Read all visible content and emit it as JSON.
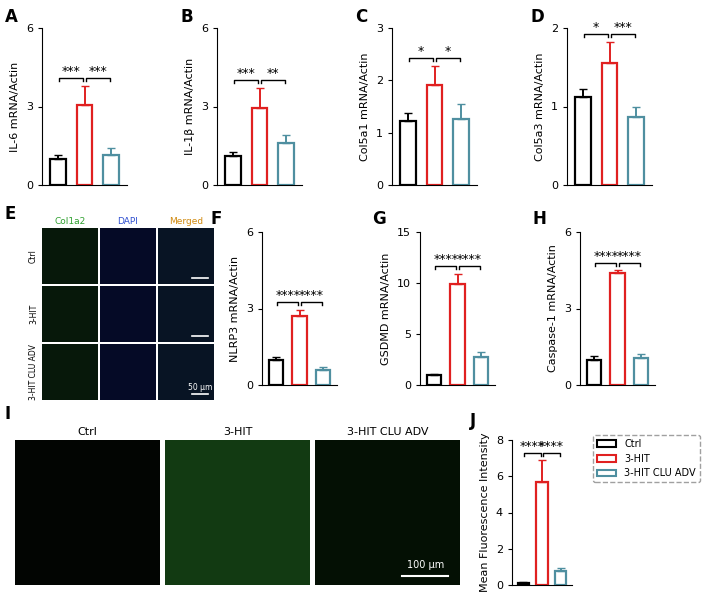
{
  "chart_data": [
    {
      "type": "bar",
      "title": "A",
      "y_label": "IL-6 mRNA/Actin",
      "categories": [
        null,
        null,
        null
      ],
      "values": [
        1.0,
        3.05,
        1.15
      ],
      "errors": [
        0.15,
        0.75,
        0.25
      ],
      "colors": [
        "#000000",
        "#e02020",
        "#4f8fa0"
      ],
      "ylim": [
        0,
        6
      ],
      "yticks": [
        0,
        3,
        6
      ],
      "annotations": [
        {
          "from": 0,
          "to": 1,
          "text": "***"
        },
        {
          "from": 1,
          "to": 2,
          "text": "***"
        }
      ]
    },
    {
      "type": "bar",
      "title": "B",
      "y_label": "IL-1β mRNA/Actin",
      "categories": [
        null,
        null,
        null
      ],
      "values": [
        1.1,
        2.95,
        1.6
      ],
      "errors": [
        0.15,
        0.75,
        0.3
      ],
      "colors": [
        "#000000",
        "#e02020",
        "#4f8fa0"
      ],
      "ylim": [
        0,
        6
      ],
      "yticks": [
        0,
        3,
        6
      ],
      "annotations": [
        {
          "from": 0,
          "to": 1,
          "text": "***"
        },
        {
          "from": 1,
          "to": 2,
          "text": "**"
        }
      ]
    },
    {
      "type": "bar",
      "title": "C",
      "y_label": "Col5a1 mRNA/Actin",
      "categories": [
        null,
        null,
        null
      ],
      "values": [
        1.22,
        1.92,
        1.27
      ],
      "errors": [
        0.15,
        0.35,
        0.28
      ],
      "colors": [
        "#000000",
        "#e02020",
        "#4f8fa0"
      ],
      "ylim": [
        0,
        3
      ],
      "yticks": [
        0,
        1,
        2,
        3
      ],
      "annotations": [
        {
          "from": 0,
          "to": 1,
          "text": "*"
        },
        {
          "from": 1,
          "to": 2,
          "text": "*"
        }
      ]
    },
    {
      "type": "bar",
      "title": "D",
      "y_label": "Col5a3 mRNA/Actin",
      "categories": [
        null,
        null,
        null
      ],
      "values": [
        1.12,
        1.55,
        0.87
      ],
      "errors": [
        0.1,
        0.27,
        0.12
      ],
      "colors": [
        "#000000",
        "#e02020",
        "#4f8fa0"
      ],
      "ylim": [
        0,
        2
      ],
      "yticks": [
        0,
        1,
        2
      ],
      "annotations": [
        {
          "from": 0,
          "to": 1,
          "text": "*"
        },
        {
          "from": 1,
          "to": 2,
          "text": "***"
        }
      ]
    },
    {
      "type": "bar",
      "title": "F",
      "y_label": "NLRP3 mRNA/Actin",
      "categories": [
        null,
        null,
        null
      ],
      "values": [
        1.0,
        2.7,
        0.6
      ],
      "errors": [
        0.1,
        0.25,
        0.1
      ],
      "colors": [
        "#000000",
        "#e02020",
        "#4f8fa0"
      ],
      "ylim": [
        0,
        6
      ],
      "yticks": [
        0,
        3,
        6
      ],
      "annotations": [
        {
          "from": 0,
          "to": 1,
          "text": "****"
        },
        {
          "from": 1,
          "to": 2,
          "text": "****"
        }
      ]
    },
    {
      "type": "bar",
      "title": "G",
      "y_label": "GSDMD mRNA/Actin",
      "categories": [
        null,
        null,
        null
      ],
      "values": [
        1.0,
        9.9,
        2.7
      ],
      "errors": [
        0.1,
        1.0,
        0.5
      ],
      "colors": [
        "#000000",
        "#e02020",
        "#4f8fa0"
      ],
      "ylim": [
        0,
        15
      ],
      "yticks": [
        0,
        5,
        10,
        15
      ],
      "annotations": [
        {
          "from": 0,
          "to": 1,
          "text": "****"
        },
        {
          "from": 1,
          "to": 2,
          "text": "****"
        }
      ]
    },
    {
      "type": "bar",
      "title": "H",
      "y_label": "Caspase-1 mRNA/Actin",
      "categories": [
        null,
        null,
        null
      ],
      "values": [
        1.0,
        4.4,
        1.05
      ],
      "errors": [
        0.15,
        0.1,
        0.15
      ],
      "colors": [
        "#000000",
        "#e02020",
        "#4f8fa0"
      ],
      "ylim": [
        0,
        6
      ],
      "yticks": [
        0,
        3,
        6
      ],
      "annotations": [
        {
          "from": 0,
          "to": 1,
          "text": "****"
        },
        {
          "from": 1,
          "to": 2,
          "text": "****"
        }
      ]
    },
    {
      "type": "bar",
      "title": "J",
      "y_label": "Mean Fluorescence Intensity",
      "categories": [
        null,
        null,
        null
      ],
      "values": [
        0.1,
        5.7,
        0.8
      ],
      "errors": [
        0.05,
        1.2,
        0.15
      ],
      "colors": [
        "#000000",
        "#e02020",
        "#4f8fa0"
      ],
      "ylim": [
        0,
        8
      ],
      "yticks": [
        0,
        2,
        4,
        6,
        8
      ],
      "annotations": [
        {
          "from": 0,
          "to": 1,
          "text": "****"
        },
        {
          "from": 1,
          "to": 2,
          "text": "****"
        }
      ]
    }
  ],
  "legend": {
    "entries": [
      {
        "name": "Ctrl",
        "color": "#000000"
      },
      {
        "name": "3-HIT",
        "color": "#e02020"
      },
      {
        "name": "3-HIT CLU ADV",
        "color": "#4f8fa0"
      }
    ]
  },
  "image_panels": [
    {
      "title": "E",
      "columns": [
        "Col1a2",
        "DAPI",
        "Merged"
      ],
      "rows": [
        "Ctrl",
        "3-HIT",
        "3-HIT CLU ADV"
      ],
      "scale_bar": "50 µm"
    },
    {
      "title": "I",
      "columns": [
        "Ctrl",
        "3-HIT",
        "3-HIT CLU ADV"
      ],
      "scale_bar": "100 µm"
    }
  ]
}
